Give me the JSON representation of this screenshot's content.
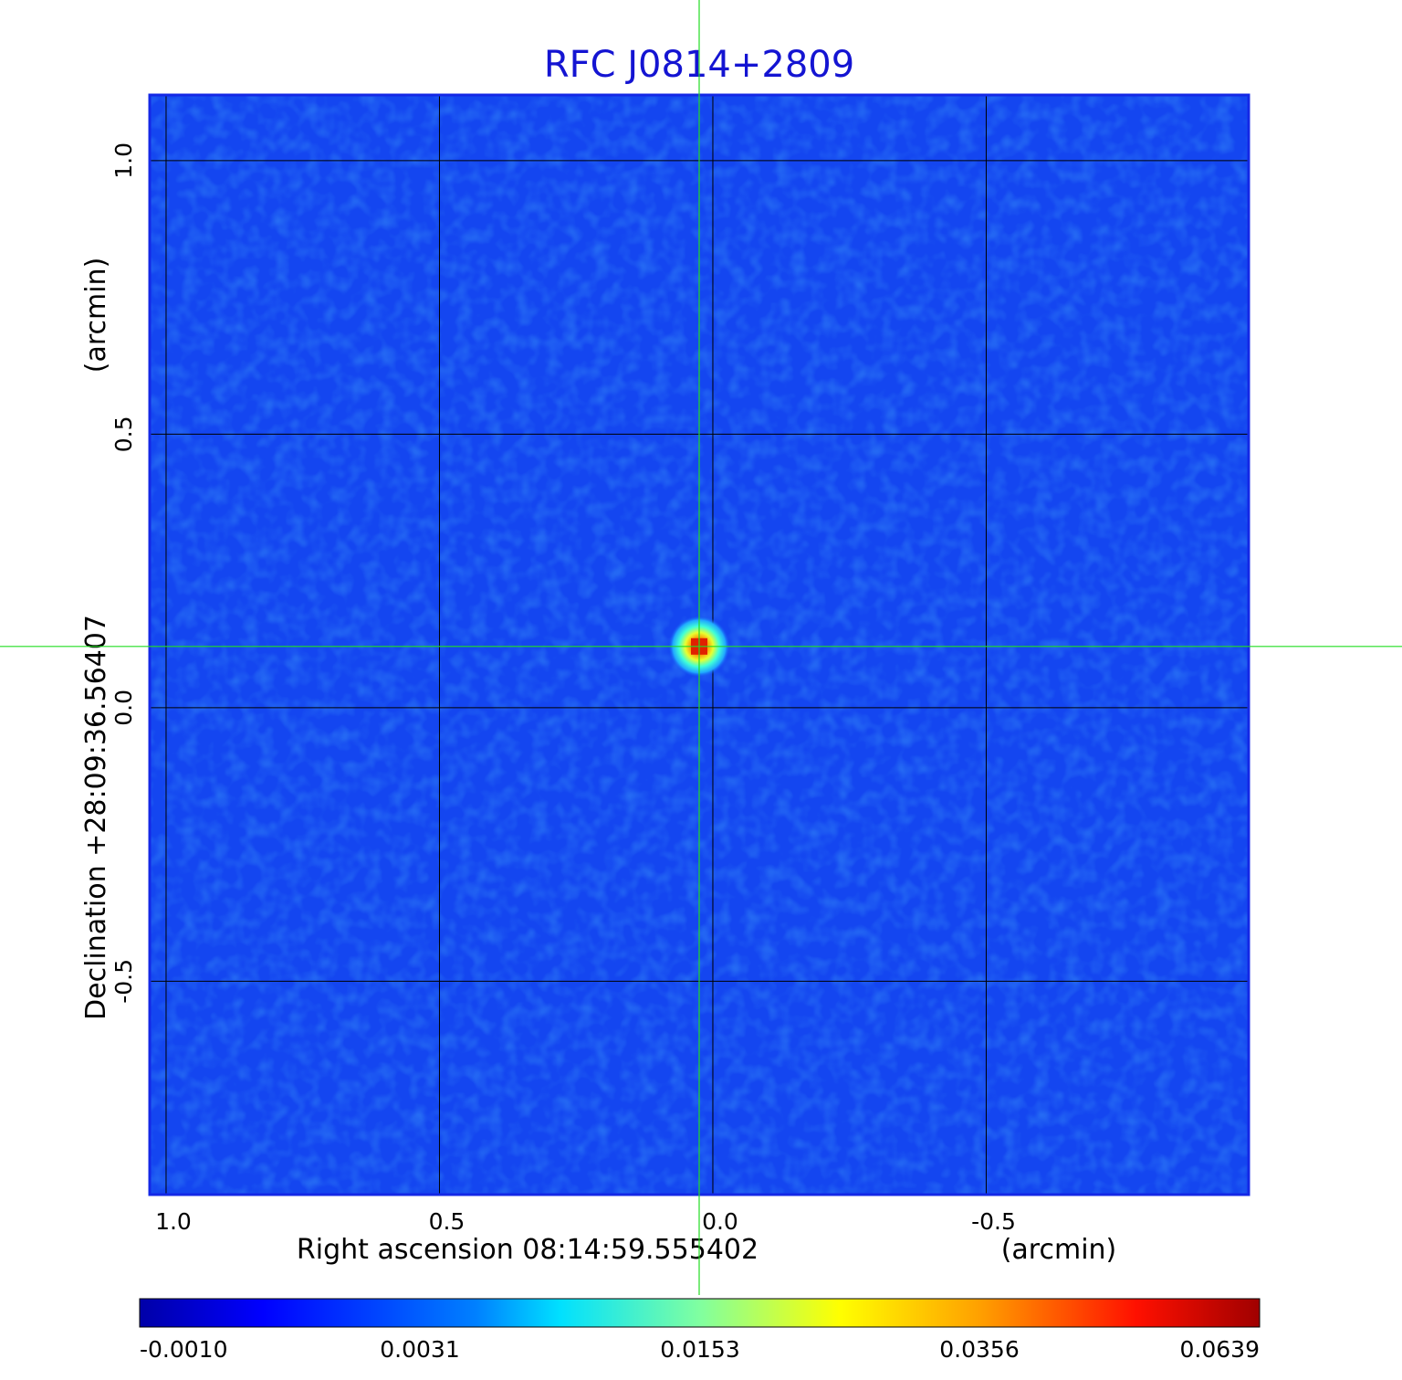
{
  "chart_data": {
    "type": "heatmap",
    "title": "RFC J0814+2809",
    "xlabel": "Right ascension  08:14:59.555402",
    "xunit": "(arcmin)",
    "ylabel": "Declination  +28:09:36.56407",
    "yunit": "(arcmin)",
    "xlim": [
      1.03,
      -0.98
    ],
    "ylim": [
      -0.89,
      1.12
    ],
    "xticks": [
      1.0,
      0.5,
      0.0,
      -0.5
    ],
    "xtick_labels": [
      "1.0",
      "0.5",
      "0.0",
      "-0.5"
    ],
    "yticks": [
      1.0,
      0.5,
      0.0,
      -0.5
    ],
    "ytick_labels": [
      "1.0",
      "0.5",
      "0.0",
      "-0.5"
    ],
    "grid": true,
    "crosshair": [
      0.025,
      0.112
    ],
    "source": {
      "x": 0.025,
      "y": 0.112,
      "peak": 0.0639
    },
    "colorbar": {
      "ticks": [
        -0.001,
        0.0031,
        0.0153,
        0.0356,
        0.0639
      ],
      "tick_labels": [
        "-0.0010",
        "0.0031",
        "0.0153",
        "0.0356",
        "0.0639"
      ],
      "colormap": "jet"
    }
  },
  "colors": {
    "title": "#1414d2",
    "frame": "#1428e6",
    "background": "#1446f0",
    "grid": "#000000",
    "crosshair": "#22dd22"
  }
}
